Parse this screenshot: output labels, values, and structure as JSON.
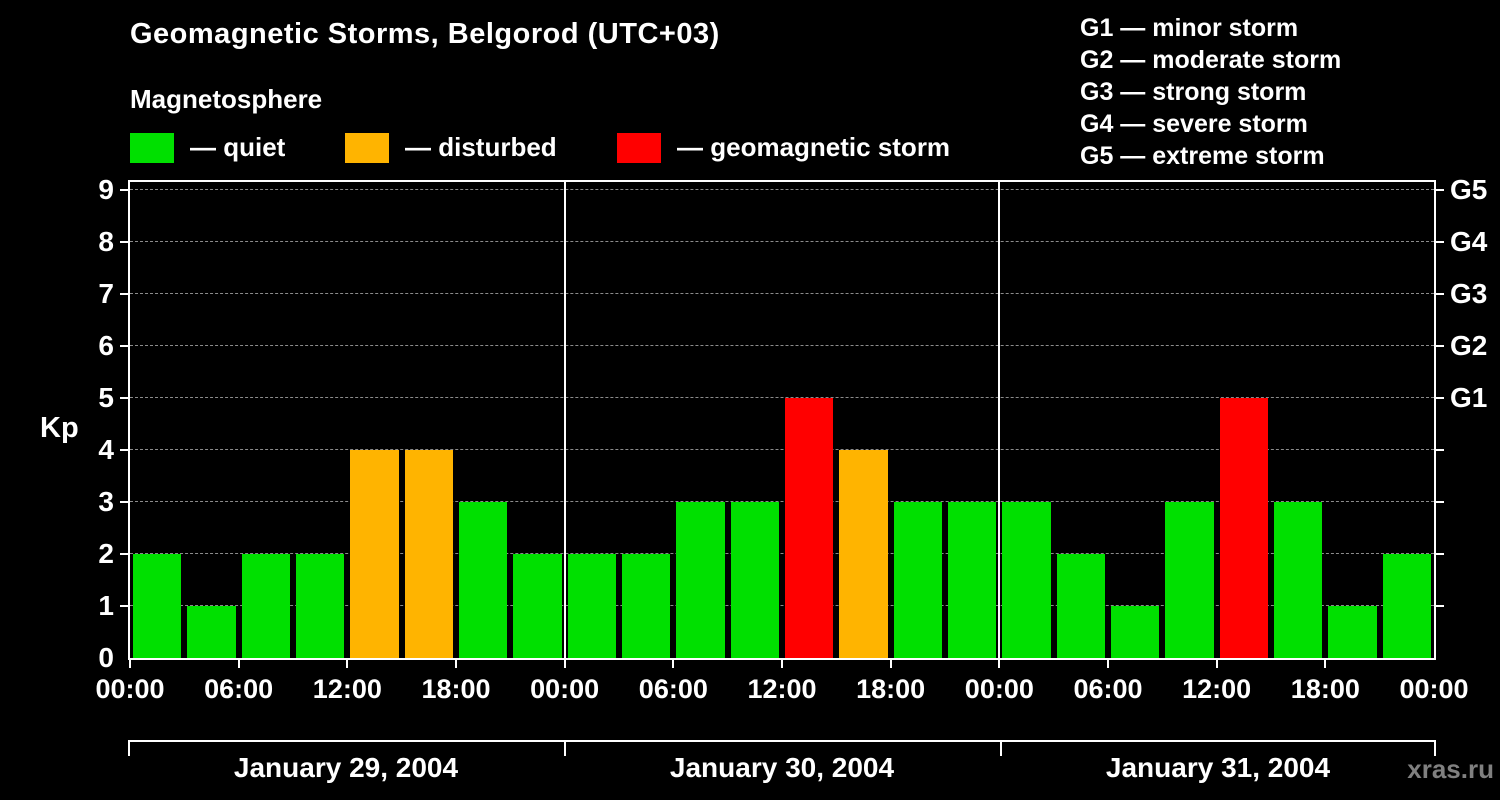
{
  "header": {
    "title": "Geomagnetic Storms, Belgorod (UTC+03)",
    "subtitle": "Magnetosphere"
  },
  "legend": {
    "items": [
      {
        "key": "quiet",
        "label": "— quiet"
      },
      {
        "key": "disturbed",
        "label": "— disturbed"
      },
      {
        "key": "storm",
        "label": "— geomagnetic storm"
      }
    ]
  },
  "g_legend": {
    "lines": [
      "G1 — minor storm",
      "G2 — moderate storm",
      "G3 — strong storm",
      "G4 — severe storm",
      "G5 — extreme storm"
    ]
  },
  "footer": {
    "watermark": "xras.ru"
  },
  "chart_data": {
    "type": "bar",
    "title": "Geomagnetic Storms, Belgorod (UTC+03)",
    "subtitle": "Magnetosphere",
    "ylabel": "Kp",
    "ylim": [
      0,
      9
    ],
    "y_ticks": [
      0,
      1,
      2,
      3,
      4,
      5,
      6,
      7,
      8,
      9
    ],
    "right_axis_ticks": [
      {
        "level": 5,
        "label": "G1"
      },
      {
        "level": 6,
        "label": "G2"
      },
      {
        "level": 7,
        "label": "G3"
      },
      {
        "level": 8,
        "label": "G4"
      },
      {
        "level": 9,
        "label": "G5"
      }
    ],
    "time_ticks": [
      "00:00",
      "06:00",
      "12:00",
      "18:00"
    ],
    "end_tick": "00:00",
    "bar_interval_hours": 3,
    "grid": "dashed-horizontal",
    "colors": {
      "quiet": "#00e000",
      "disturbed": "#ffb400",
      "storm": "#ff0000",
      "background": "#000000",
      "axis": "#ffffff",
      "gridline": "#8c8c8c"
    },
    "color_rule": {
      "quiet_max": 3,
      "disturbed": 4,
      "storm_min": 5
    },
    "days": [
      {
        "label": "January 29, 2004",
        "values": [
          2,
          1,
          2,
          2,
          4,
          4,
          3,
          2
        ]
      },
      {
        "label": "January 30, 2004",
        "values": [
          2,
          2,
          3,
          3,
          5,
          4,
          3,
          3
        ]
      },
      {
        "label": "January 31, 2004",
        "values": [
          3,
          2,
          1,
          3,
          5,
          3,
          1,
          2
        ]
      }
    ]
  }
}
